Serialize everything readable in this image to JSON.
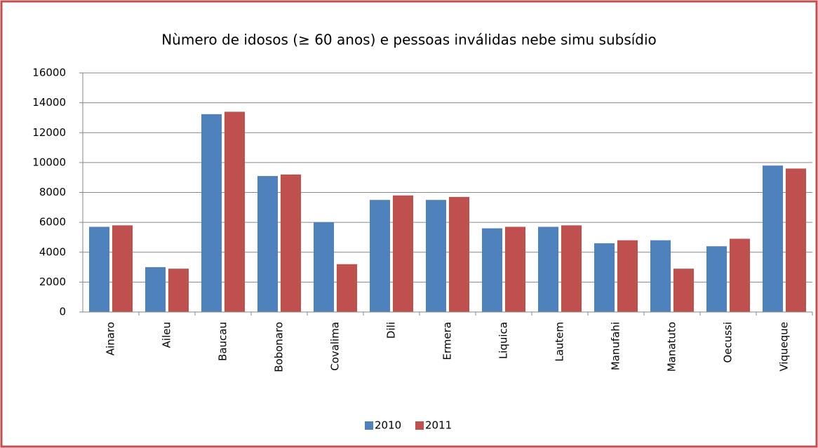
{
  "chart_data": {
    "type": "bar",
    "title": "Nùmero de idosos (≥ 60 anos) e pessoas inválidas nebe simu subsídio",
    "categories": [
      "Ainaro",
      "Aileu",
      "Baucau",
      "Bobonaro",
      "Covalima",
      "Dili",
      "Ermera",
      "Liquica",
      "Lautem",
      "Manufahi",
      "Manatuto",
      "Oecussi",
      "Viqueque"
    ],
    "series": [
      {
        "name": "2010",
        "color": "#4f81bd",
        "values": [
          5700,
          3000,
          13240,
          9100,
          6000,
          7500,
          7500,
          5600,
          5700,
          4600,
          4800,
          4400,
          9800
        ]
      },
      {
        "name": "2011",
        "color": "#c0504d",
        "values": [
          5800,
          2900,
          13400,
          9200,
          3200,
          7800,
          7700,
          5700,
          5800,
          4800,
          2900,
          4900,
          9600
        ]
      }
    ],
    "ylim": [
      0,
      16000
    ],
    "yticks": [
      0,
      2000,
      4000,
      6000,
      8000,
      10000,
      12000,
      14000,
      16000
    ],
    "grid": true,
    "legend": "bottom"
  }
}
